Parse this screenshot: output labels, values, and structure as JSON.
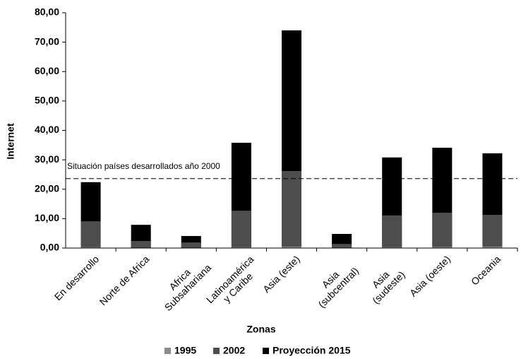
{
  "chart_data": {
    "type": "bar",
    "x_label": "Zonas",
    "y_label": "Internet",
    "categories": [
      "En desarrollo",
      "Norte de Africa",
      "Africa\nSubsahariana",
      "Latinoamérica\ny Caribe",
      "Asia (este)",
      "Asia\n(subcentral)",
      "Asia\n(sudeste)",
      "Asia (oeste)",
      "Oceania"
    ],
    "series": [
      {
        "name": "1995",
        "color": "#8c8c8c",
        "values": [
          0.3,
          0.1,
          0.1,
          0.3,
          0.5,
          0.1,
          0.3,
          0.4,
          0.5
        ]
      },
      {
        "name": "2002",
        "color": "#4d4d4d",
        "values": [
          9.1,
          2.4,
          1.9,
          12.7,
          26.2,
          1.4,
          11.1,
          12.0,
          11.3
        ]
      },
      {
        "name": "Proyección 2015",
        "color": "#000000",
        "values": [
          22.4,
          7.9,
          4.1,
          35.8,
          74.0,
          4.8,
          30.8,
          34.1,
          32.2
        ]
      }
    ],
    "reference_line": {
      "value": 23.6,
      "label": "Situación países desarrollados año 2000"
    },
    "ylim": [
      0,
      80
    ],
    "yticks": [
      {
        "value": 0,
        "label": "0,00"
      },
      {
        "value": 10,
        "label": "10,00"
      },
      {
        "value": 20,
        "label": "20,00"
      },
      {
        "value": 30,
        "label": "30,00"
      },
      {
        "value": 40,
        "label": "40,00"
      },
      {
        "value": 50,
        "label": "50,00"
      },
      {
        "value": 60,
        "label": "60,00"
      },
      {
        "value": 70,
        "label": "70,00"
      },
      {
        "value": 80,
        "label": "80,00"
      }
    ]
  }
}
